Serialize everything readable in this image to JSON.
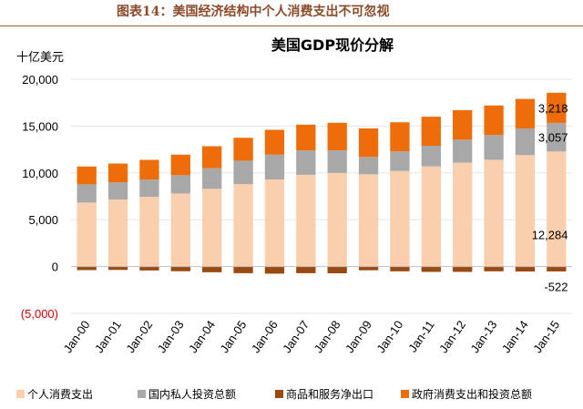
{
  "figure_caption": "图表14：美国经济结构中个人消费支出不可忽视",
  "chart_data": {
    "type": "bar",
    "stacked": true,
    "title": "美国GDP现价分解",
    "ylabel": "十亿美元",
    "ylim": [
      -5000,
      20000
    ],
    "yticks": [
      -5000,
      0,
      5000,
      10000,
      15000,
      20000
    ],
    "ytick_labels": [
      "(5,000)",
      "0",
      "5,000",
      "10,000",
      "15,000",
      "20,000"
    ],
    "categories": [
      "Jan-00",
      "Jan-01",
      "Jan-02",
      "Jan-03",
      "Jan-04",
      "Jan-05",
      "Jan-06",
      "Jan-07",
      "Jan-08",
      "Jan-09",
      "Jan-10",
      "Jan-11",
      "Jan-12",
      "Jan-13",
      "Jan-14",
      "Jan-15"
    ],
    "series": [
      {
        "name": "个人消费支出",
        "color": "#f9cfae",
        "values": [
          6830,
          7150,
          7440,
          7800,
          8300,
          8800,
          9300,
          9800,
          10000,
          9850,
          10200,
          10700,
          11100,
          11400,
          11900,
          12284
        ]
      },
      {
        "name": "国内私人投资总额",
        "color": "#a8a8a8",
        "values": [
          1950,
          1850,
          1850,
          1950,
          2200,
          2500,
          2650,
          2600,
          2400,
          1850,
          2100,
          2200,
          2450,
          2650,
          2850,
          3057
        ]
      },
      {
        "name": "商品和服务净出口",
        "color": "#9b4a0f",
        "values": [
          -380,
          -360,
          -420,
          -500,
          -610,
          -710,
          -760,
          -710,
          -720,
          -400,
          -510,
          -570,
          -570,
          -510,
          -530,
          -522
        ]
      },
      {
        "name": "政府消费支出和投资总额",
        "color": "#ec6d0a",
        "values": [
          1900,
          2000,
          2100,
          2200,
          2350,
          2450,
          2650,
          2750,
          2950,
          3050,
          3100,
          3100,
          3150,
          3150,
          3150,
          3218
        ]
      }
    ],
    "data_labels": [
      {
        "category": "Jan-15",
        "series": "政府消费支出和投资总额",
        "text": "3,218"
      },
      {
        "category": "Jan-15",
        "series": "国内私人投资总额",
        "text": "3,057"
      },
      {
        "category": "Jan-15",
        "series": "个人消费支出",
        "text": "12,284"
      },
      {
        "category": "Jan-15",
        "series": "商品和服务净出口",
        "text": "-522"
      }
    ],
    "legend_position": "bottom",
    "grid": true
  }
}
